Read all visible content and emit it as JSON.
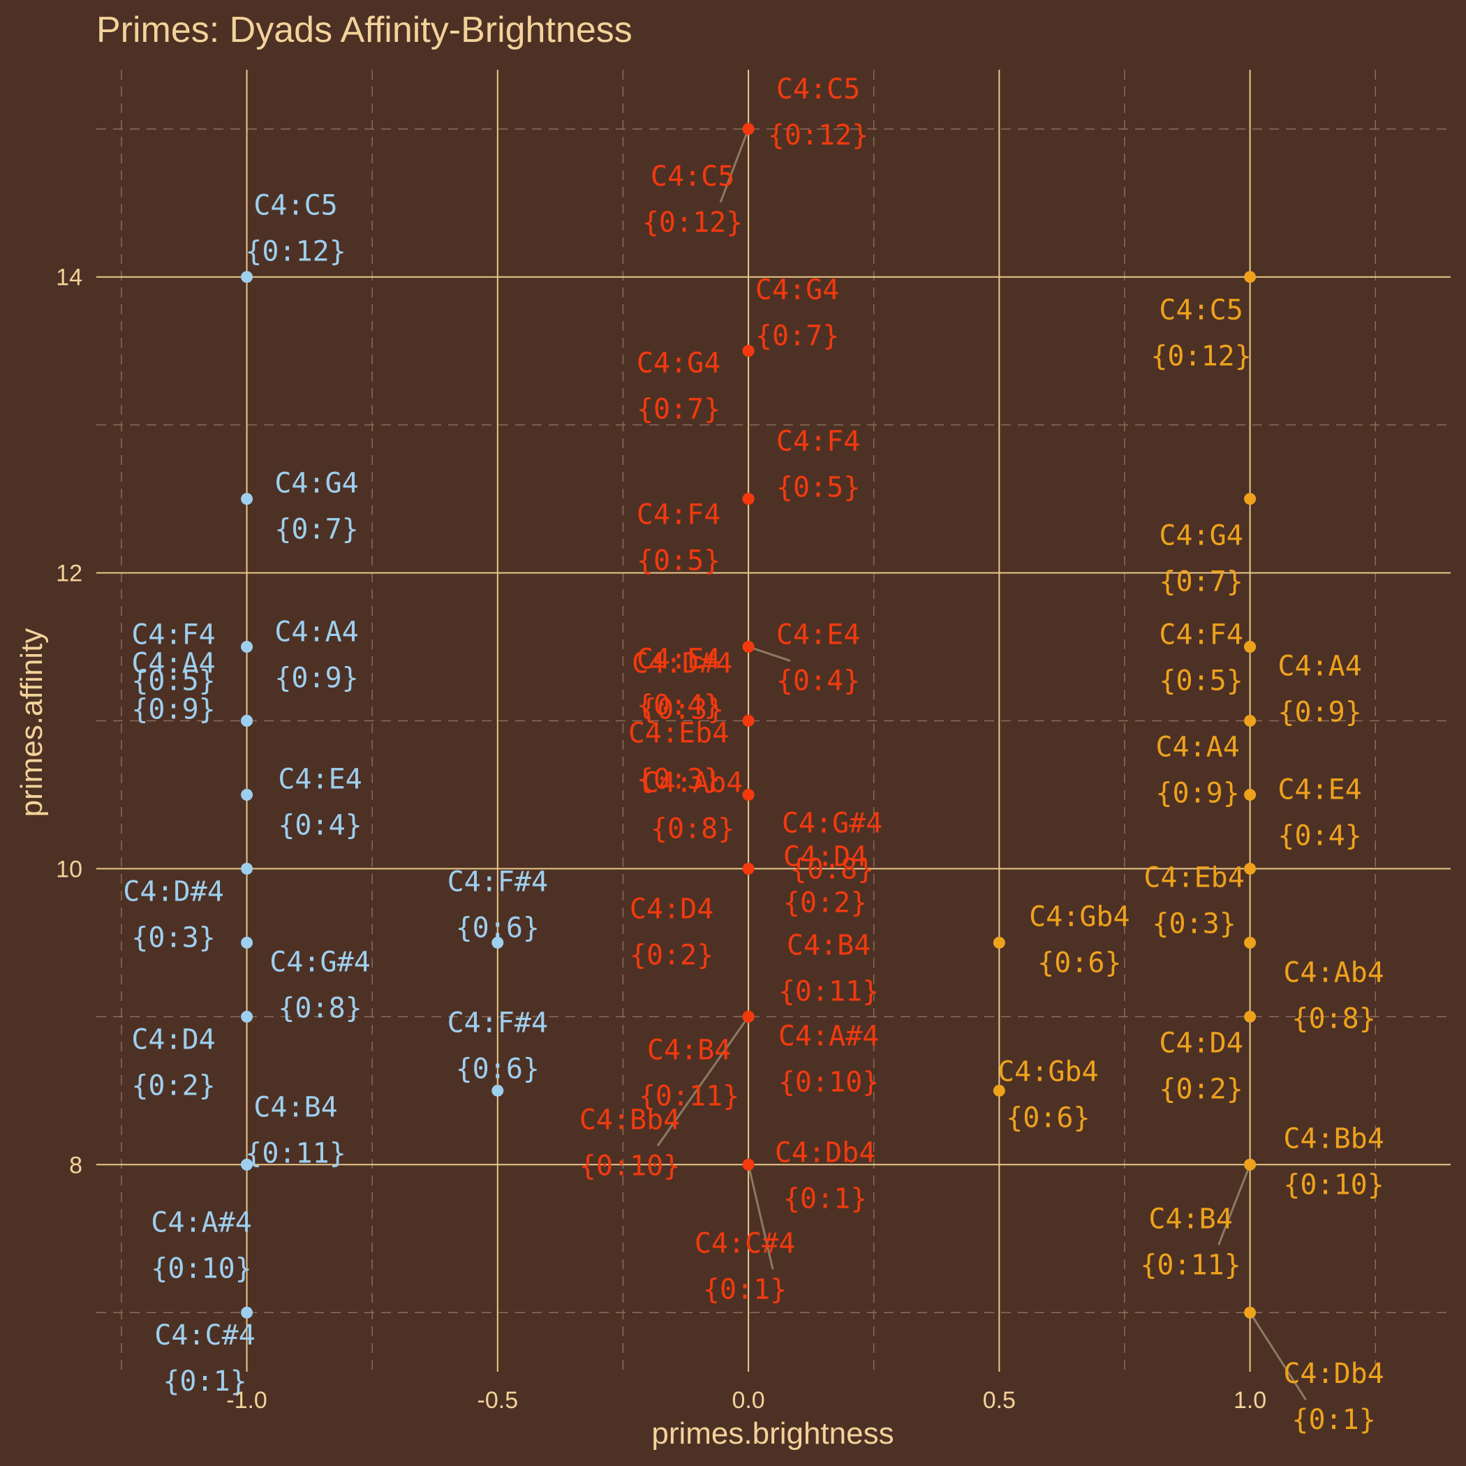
{
  "chart_data": {
    "type": "scatter",
    "title": "Primes: Dyads Affinity-Brightness",
    "xlabel": "primes.brightness",
    "ylabel": "primes.affinity",
    "xlim": [
      -1.3,
      1.4
    ],
    "ylim": [
      6.6,
      15.4
    ],
    "x_ticks": [
      -1.0,
      -0.5,
      0.0,
      0.5,
      1.0
    ],
    "x_tick_labels": [
      "-1.0",
      "-0.5",
      "0.0",
      "0.5",
      "1.0"
    ],
    "y_ticks": [
      8,
      10,
      12,
      14
    ],
    "y_tick_labels": [
      "8",
      "10",
      "12",
      "14"
    ],
    "grid": true,
    "colors": {
      "minus": "#9ecfee",
      "zero": "#f23a0e",
      "plus": "#eea21c",
      "background": "#4e3125",
      "text": "#f3d39a"
    },
    "series": [
      {
        "color": "#9ecfee",
        "points": [
          {
            "x": -1.0,
            "y": 14.0,
            "l1": "C4:C5",
            "l2": "{0:12}"
          },
          {
            "x": -1.0,
            "y": 12.5,
            "l1": "C4:G4",
            "l2": "{0:7}"
          },
          {
            "x": -1.0,
            "y": 11.5,
            "l1": "C4:F4",
            "l2": "{0:5}"
          },
          {
            "x": -1.0,
            "y": 11.0,
            "l1": "C4:A4",
            "l2": "{0:9}"
          },
          {
            "x": -1.0,
            "y": 11.0,
            "l1": "C4:A4",
            "l2": "{0:9}"
          },
          {
            "x": -1.0,
            "y": 10.5,
            "l1": "C4:E4",
            "l2": "{0:4}"
          },
          {
            "x": -1.0,
            "y": 10.0,
            "l1": "C4:D#4",
            "l2": "{0:3}"
          },
          {
            "x": -1.0,
            "y": 9.5,
            "l1": "C4:G#4",
            "l2": "{0:8}"
          },
          {
            "x": -1.0,
            "y": 9.0,
            "l1": "C4:D4",
            "l2": "{0:2}"
          },
          {
            "x": -1.0,
            "y": 8.0,
            "l1": "C4:B4",
            "l2": "{0:11}"
          },
          {
            "x": -1.0,
            "y": 8.0,
            "l1": "C4:A#4",
            "l2": "{0:10}"
          },
          {
            "x": -1.0,
            "y": 7.0,
            "l1": "C4:C#4",
            "l2": "{0:1}"
          },
          {
            "x": -0.5,
            "y": 9.5,
            "l1": "C4:F#4",
            "l2": "{0:6}"
          },
          {
            "x": -0.5,
            "y": 8.5,
            "l1": "C4:F#4",
            "l2": "{0:6}"
          }
        ]
      },
      {
        "color": "#f23a0e",
        "points": [
          {
            "x": 0.0,
            "y": 15.0,
            "l1": "C4:C5",
            "l2": "{0:12}"
          },
          {
            "x": 0.0,
            "y": 15.0,
            "l1": "C4:C5",
            "l2": "{0:12}"
          },
          {
            "x": 0.0,
            "y": 13.5,
            "l1": "C4:G4",
            "l2": "{0:7}"
          },
          {
            "x": 0.0,
            "y": 13.5,
            "l1": "C4:G4",
            "l2": "{0:7}"
          },
          {
            "x": 0.0,
            "y": 12.5,
            "l1": "C4:F4",
            "l2": "{0:5}"
          },
          {
            "x": 0.0,
            "y": 12.5,
            "l1": "C4:F4",
            "l2": "{0:5}"
          },
          {
            "x": 0.0,
            "y": 11.5,
            "l1": "C4:E4",
            "l2": "{0:4}"
          },
          {
            "x": 0.0,
            "y": 11.5,
            "l1": "C4:E4",
            "l2": "{0:4}"
          },
          {
            "x": 0.0,
            "y": 11.0,
            "l1": "C4:Eb4",
            "l2": "{0:3}"
          },
          {
            "x": 0.0,
            "y": 11.0,
            "l1": "C4:D#4",
            "l2": "{0:3}"
          },
          {
            "x": 0.0,
            "y": 10.5,
            "l1": "C4:G#4",
            "l2": "{0:8}"
          },
          {
            "x": 0.0,
            "y": 10.5,
            "l1": "C4:Ab4",
            "l2": "{0:8}"
          },
          {
            "x": 0.0,
            "y": 10.0,
            "l1": "C4:D4",
            "l2": "{0:2}"
          },
          {
            "x": 0.0,
            "y": 10.0,
            "l1": "C4:D4",
            "l2": "{0:2}"
          },
          {
            "x": 0.0,
            "y": 9.0,
            "l1": "C4:B4",
            "l2": "{0:11}"
          },
          {
            "x": 0.0,
            "y": 9.0,
            "l1": "C4:B4",
            "l2": "{0:11}"
          },
          {
            "x": 0.0,
            "y": 9.0,
            "l1": "C4:A#4",
            "l2": "{0:10}"
          },
          {
            "x": 0.0,
            "y": 9.0,
            "l1": "C4:Bb4",
            "l2": "{0:10}"
          },
          {
            "x": 0.0,
            "y": 8.0,
            "l1": "C4:Db4",
            "l2": "{0:1}"
          },
          {
            "x": 0.0,
            "y": 8.0,
            "l1": "C4:C#4",
            "l2": "{0:1}"
          }
        ]
      },
      {
        "color": "#eea21c",
        "points": [
          {
            "x": 1.0,
            "y": 14.0,
            "l1": "C4:C5",
            "l2": "{0:12}"
          },
          {
            "x": 1.0,
            "y": 12.5,
            "l1": "C4:G4",
            "l2": "{0:7}"
          },
          {
            "x": 1.0,
            "y": 11.5,
            "l1": "C4:F4",
            "l2": "{0:5}"
          },
          {
            "x": 1.0,
            "y": 11.5,
            "l1": "C4:A4",
            "l2": "{0:9}"
          },
          {
            "x": 1.0,
            "y": 11.0,
            "l1": "C4:A4",
            "l2": "{0:9}"
          },
          {
            "x": 1.0,
            "y": 10.5,
            "l1": "C4:E4",
            "l2": "{0:4}"
          },
          {
            "x": 1.0,
            "y": 10.0,
            "l1": "C4:Eb4",
            "l2": "{0:3}"
          },
          {
            "x": 1.0,
            "y": 9.5,
            "l1": "C4:Ab4",
            "l2": "{0:8}"
          },
          {
            "x": 1.0,
            "y": 9.0,
            "l1": "C4:D4",
            "l2": "{0:2}"
          },
          {
            "x": 1.0,
            "y": 8.0,
            "l1": "C4:Bb4",
            "l2": "{0:10}"
          },
          {
            "x": 1.0,
            "y": 8.0,
            "l1": "C4:B4",
            "l2": "{0:11}"
          },
          {
            "x": 1.0,
            "y": 7.0,
            "l1": "C4:Db4",
            "l2": "{0:1}"
          },
          {
            "x": 0.5,
            "y": 9.5,
            "l1": "C4:Gb4",
            "l2": "{0:6}"
          },
          {
            "x": 0.5,
            "y": 8.5,
            "l1": "C4:Gb4",
            "l2": "{0:6}"
          }
        ]
      }
    ]
  }
}
